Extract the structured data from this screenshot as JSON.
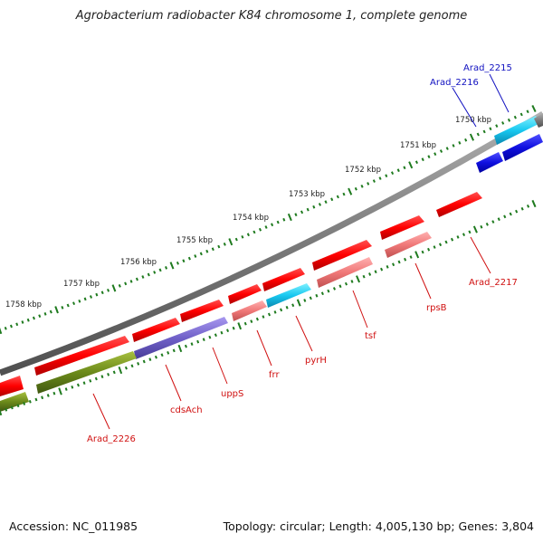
{
  "title": "Agrobacterium radiobacter K84 chromosome 1, complete genome",
  "accession": "Accession: NC_011985",
  "topology": "Topology: circular; Length: 4,005,130 bp; Genes: 3,804",
  "colors": {
    "backbone": "#7a7a7a",
    "tick": "#1e7a1e",
    "forward_red": "#ff1010",
    "pink": "#f08080",
    "cyan": "#18c0e8",
    "olive": "#6b8a1a",
    "purple": "#7060c8",
    "blue": "#1010e0",
    "label_red": "#d01010",
    "label_blue": "#1010c0"
  },
  "scale_labels": [
    "1758 kbp",
    "1757 kbp",
    "1756 kbp",
    "1755 kbp",
    "1754 kbp",
    "1753 kbp",
    "1752 kbp",
    "1751 kbp",
    "1750 kbp"
  ],
  "gene_labels": [
    {
      "name": "Arad_2215",
      "color": "blue"
    },
    {
      "name": "Arad_2216",
      "color": "blue"
    },
    {
      "name": "Arad_2217",
      "color": "red"
    },
    {
      "name": "rpsB",
      "color": "red"
    },
    {
      "name": "tsf",
      "color": "red"
    },
    {
      "name": "pyrH",
      "color": "red"
    },
    {
      "name": "frr",
      "color": "red"
    },
    {
      "name": "uppS",
      "color": "red"
    },
    {
      "name": "cdsAch",
      "color": "red"
    },
    {
      "name": "Arad_2226",
      "color": "red"
    }
  ]
}
